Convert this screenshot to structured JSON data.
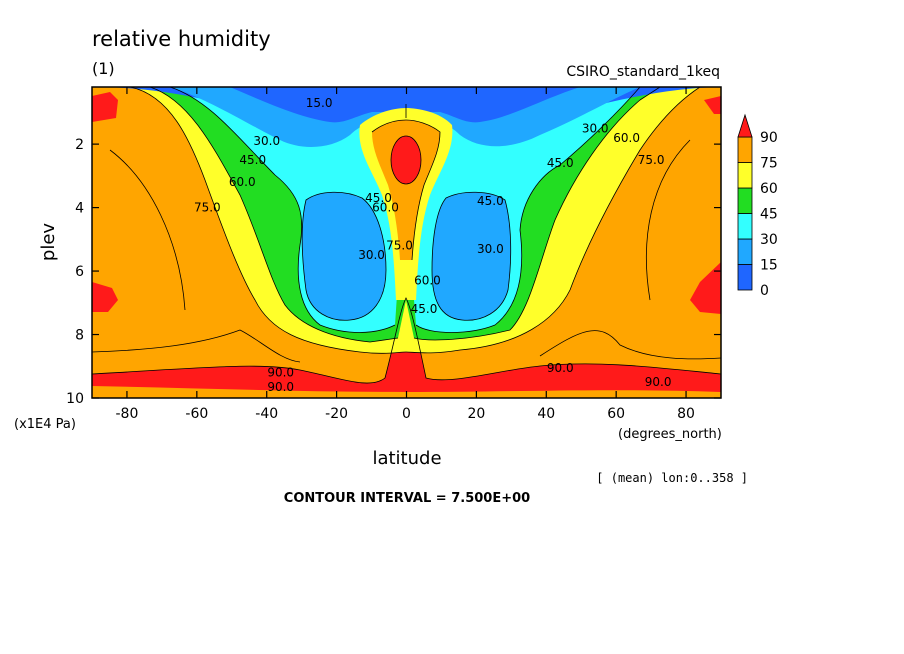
{
  "chart_data": {
    "type": "heatmap",
    "title": "relative humidity",
    "subtitle": "(1)",
    "dataset": "CSIRO_standard_1keq",
    "xlabel": "latitude",
    "x_units": "(degrees_north)",
    "ylabel": "plev",
    "y_units": "(x1E4 Pa)",
    "xlim": [
      -90,
      90
    ],
    "ylim": [
      10,
      0.2
    ],
    "x_ticks": [
      -80,
      -60,
      -40,
      -20,
      0,
      20,
      40,
      60,
      80
    ],
    "y_ticks": [
      2,
      4,
      6,
      8,
      10
    ],
    "contour_interval_label": "CONTOUR INTERVAL = 7.500E+00",
    "subset_label": "[ (mean) lon:0..358 ]",
    "contour_interval": 7.5,
    "colorbar": {
      "levels": [
        0,
        15,
        30,
        45,
        60,
        75,
        90
      ],
      "colors": [
        "#1f66ff",
        "#20a8ff",
        "#33ffff",
        "#22dd22",
        "#ffff2a",
        "#ffa500",
        "#ff1a1a"
      ]
    },
    "contour_labels": [
      {
        "text": "15.0",
        "lat": -25,
        "plev": 0.7
      },
      {
        "text": "30.0",
        "lat": -40,
        "plev": 1.9
      },
      {
        "text": "45.0",
        "lat": -44,
        "plev": 2.5
      },
      {
        "text": "60.0",
        "lat": -47,
        "plev": 3.2
      },
      {
        "text": "75.0",
        "lat": -57,
        "plev": 4.0
      },
      {
        "text": "45.0",
        "lat": -8,
        "plev": 3.7
      },
      {
        "text": "60.0",
        "lat": -6,
        "plev": 4.0
      },
      {
        "text": "30.0",
        "lat": -10,
        "plev": 5.5
      },
      {
        "text": "75.0",
        "lat": -2,
        "plev": 5.2
      },
      {
        "text": "60.0",
        "lat": 6,
        "plev": 6.3
      },
      {
        "text": "45.0",
        "lat": 5,
        "plev": 7.2
      },
      {
        "text": "45.0",
        "lat": 24,
        "plev": 3.8
      },
      {
        "text": "30.0",
        "lat": 24,
        "plev": 5.3
      },
      {
        "text": "45.0",
        "lat": 44,
        "plev": 2.6
      },
      {
        "text": "30.0",
        "lat": 54,
        "plev": 1.5
      },
      {
        "text": "60.0",
        "lat": 63,
        "plev": 1.8
      },
      {
        "text": "75.0",
        "lat": 70,
        "plev": 2.5
      },
      {
        "text": "90.0",
        "lat": -36,
        "plev": 9.2
      },
      {
        "text": "90.0",
        "lat": -36,
        "plev": 9.65
      },
      {
        "text": "90.0",
        "lat": 44,
        "plev": 9.05
      },
      {
        "text": "90.0",
        "lat": 72,
        "plev": 9.5
      }
    ],
    "grid": false,
    "legend": "right"
  }
}
